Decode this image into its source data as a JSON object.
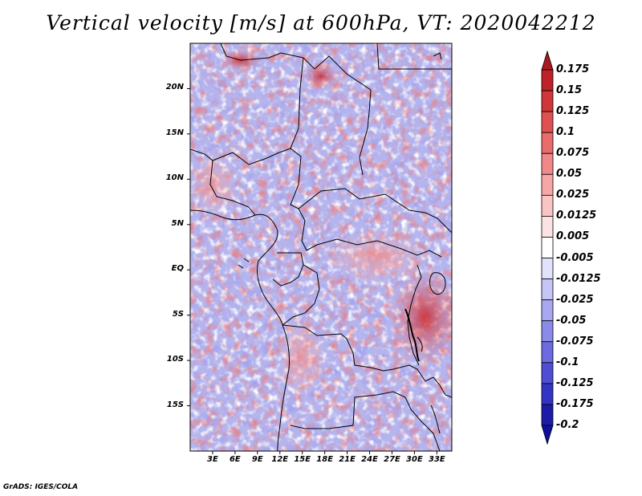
{
  "title": "Vertical velocity [m/s] at 600hPa, VT: 2020042212",
  "credit": "GrADS: IGES/COLA",
  "map": {
    "lat_labels": [
      "20N",
      "15N",
      "10N",
      "5N",
      "EQ",
      "5S",
      "10S",
      "15S"
    ],
    "lon_labels": [
      "3E",
      "6E",
      "9E",
      "12E",
      "15E",
      "18E",
      "21E",
      "24E",
      "27E",
      "30E",
      "33E"
    ],
    "lat_range": [
      -20,
      25
    ],
    "lon_range": [
      0,
      35
    ]
  },
  "colorbar": {
    "labels": [
      "0.175",
      "0.15",
      "0.125",
      "0.1",
      "0.075",
      "0.05",
      "0.025",
      "0.0125",
      "0.005",
      "-0.005",
      "-0.0125",
      "-0.025",
      "-0.05",
      "-0.075",
      "-0.1",
      "-0.125",
      "-0.175",
      "-0.2"
    ],
    "colors": [
      "#a81820",
      "#c02028",
      "#d0363a",
      "#e05050",
      "#e86c6c",
      "#f08888",
      "#f6a6a6",
      "#f9c4c4",
      "#fce2e2",
      "#ffffff",
      "#e2e2fc",
      "#c6c6f6",
      "#a8a8f0",
      "#8a8ae8",
      "#6c6ce0",
      "#4e4ed4",
      "#3434c4",
      "#1c1ca8",
      "#1010a0"
    ]
  }
}
